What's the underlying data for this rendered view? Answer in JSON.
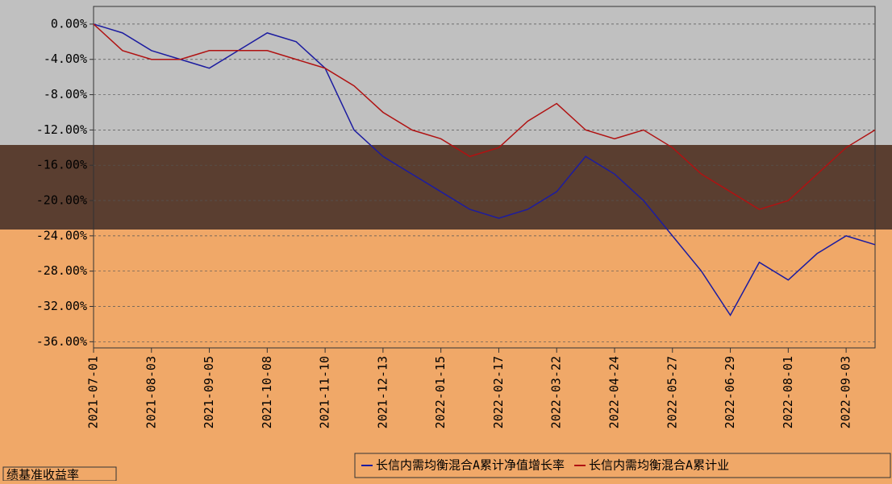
{
  "chart_data": {
    "type": "line",
    "categories": [
      "2021-07-01",
      null,
      "2021-08-03",
      null,
      "2021-09-05",
      null,
      "2021-10-08",
      null,
      "2021-11-10",
      null,
      "2021-12-13",
      null,
      "2022-01-15",
      null,
      "2022-02-17",
      null,
      "2022-03-22",
      null,
      "2022-04-24",
      null,
      "2022-05-27",
      null,
      "2022-06-29",
      null,
      "2022-08-01",
      null,
      "2022-09-03",
      null
    ],
    "series": [
      {
        "name": "长信内需均衡混合A累计净值增长率",
        "color": "#1c1ca0",
        "values": [
          0,
          -1,
          -3,
          -4,
          -5,
          -3,
          -1,
          -2,
          -5,
          -12,
          -15,
          -17,
          -19,
          -21,
          -22,
          -21,
          -19,
          -15,
          -17,
          -20,
          -24,
          -28,
          -33,
          -27,
          -29,
          -26,
          -24,
          -25
        ]
      },
      {
        "name": "长信内需均衡混合A累计业",
        "color": "#b01212",
        "values": [
          0,
          -3,
          -4,
          -4,
          -3,
          -3,
          -3,
          -4,
          -5,
          -7,
          -10,
          -12,
          -13,
          -15,
          -14,
          -11,
          -9,
          -12,
          -13,
          -12,
          -14,
          -17,
          -19,
          -21,
          -20,
          -17,
          -14,
          -12
        ]
      }
    ],
    "ylim": [
      -36.7,
      2
    ],
    "yticks": [
      {
        "value": 0,
        "label": "0.00%"
      },
      {
        "value": -4,
        "label": "-4.00%"
      },
      {
        "value": -8,
        "label": "-8.00%"
      },
      {
        "value": -12,
        "label": "-12.00%"
      },
      {
        "value": -16,
        "label": "-16.00%"
      },
      {
        "value": -20,
        "label": "-20.00%"
      },
      {
        "value": -24,
        "label": "-24.00%"
      },
      {
        "value": -28,
        "label": "-28.00%"
      },
      {
        "value": -32,
        "label": "-32.00%"
      },
      {
        "value": -36,
        "label": "-36.00%"
      }
    ],
    "grid": true,
    "footer_text": "绩基准收益率"
  }
}
